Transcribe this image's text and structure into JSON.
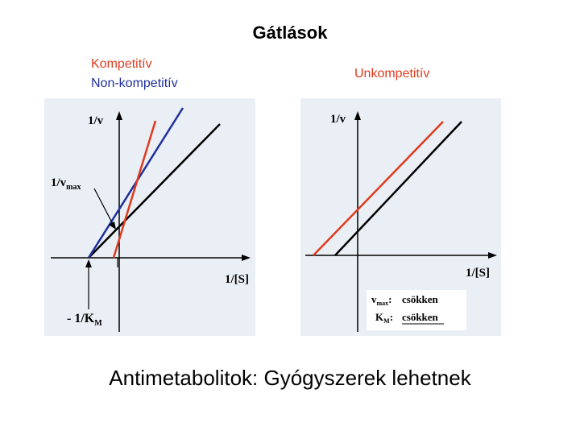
{
  "title": "Gátlások",
  "colors": {
    "competitive": "#e03a1e",
    "noncompetitive": "#1f2f9c",
    "uncompetitive": "#e03a1e",
    "panel_bg": "#eaeff5"
  },
  "labels": {
    "competitive": "Kompetitív",
    "noncompetitive": "Non-kompetitív",
    "uncompetitive": "Unkompetitív"
  },
  "left_graph": {
    "y_axis": "1/v",
    "y_marker": "1/v",
    "y_marker_sub": "max",
    "x_axis": "1/[S]",
    "x_marker": "- 1/K",
    "x_marker_sub": "M"
  },
  "right_graph": {
    "y_axis": "1/v",
    "x_axis": "1/[S]",
    "legend": {
      "row1_symbol": "v",
      "row1_sub": "max",
      "row1_value": "csökken",
      "row2_symbol": "K",
      "row2_sub": "M",
      "row2_value": "csökken"
    }
  },
  "footer": "Antimetabolitok: Gyógyszerek lehetnek"
}
